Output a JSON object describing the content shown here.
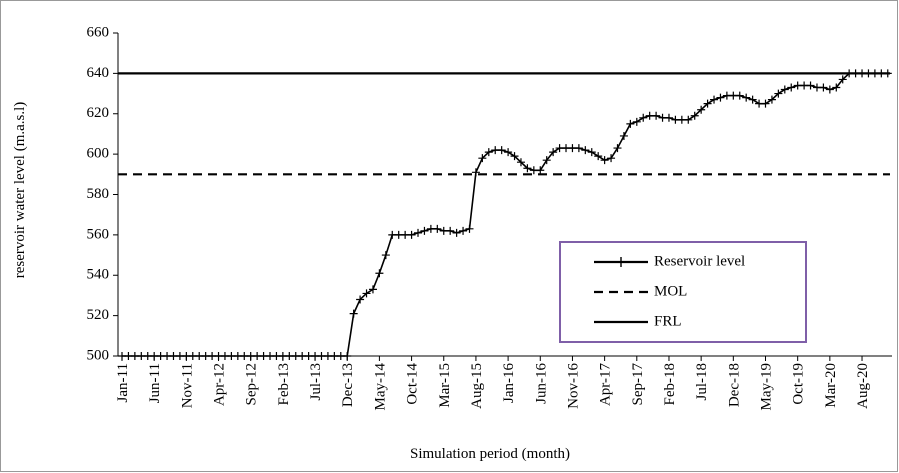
{
  "chart_data": {
    "type": "line",
    "ylabel": "reservoir water level (m.a.s.l)",
    "xlabel": "Simulation period (month)",
    "categories": [
      "Jan-11",
      null,
      null,
      null,
      null,
      "Jun-11",
      null,
      null,
      null,
      null,
      "Nov-11",
      null,
      null,
      null,
      null,
      "Apr-12",
      null,
      null,
      null,
      null,
      "Sep-12",
      null,
      null,
      null,
      null,
      "Feb-13",
      null,
      null,
      null,
      null,
      "Jul-13",
      null,
      null,
      null,
      null,
      "Dec-13",
      null,
      null,
      null,
      null,
      "May-14",
      null,
      null,
      null,
      null,
      "Oct-14",
      null,
      null,
      null,
      null,
      "Mar-15",
      null,
      null,
      null,
      null,
      "Aug-15",
      null,
      null,
      null,
      null,
      "Jan-16",
      null,
      null,
      null,
      null,
      "Jun-16",
      null,
      null,
      null,
      null,
      "Nov-16",
      null,
      null,
      null,
      null,
      "Apr-17",
      null,
      null,
      null,
      null,
      "Sep-17",
      null,
      null,
      null,
      null,
      "Feb-18",
      null,
      null,
      null,
      null,
      "Jul-18",
      null,
      null,
      null,
      null,
      "Dec-18",
      null,
      null,
      null,
      null,
      "May-19",
      null,
      null,
      null,
      null,
      "Oct-19",
      null,
      null,
      null,
      null,
      "Mar-20",
      null,
      null,
      null,
      null,
      "Aug-20",
      null,
      null,
      null,
      null
    ],
    "series": [
      {
        "name": "Reservoir level",
        "color": "#000000",
        "values": [
          500,
          500,
          500,
          500,
          500,
          500,
          500,
          500,
          500,
          500,
          500,
          500,
          500,
          500,
          500,
          500,
          500,
          500,
          500,
          500,
          500,
          500,
          500,
          500,
          500,
          500,
          500,
          500,
          500,
          500,
          500,
          500,
          500,
          500,
          500,
          500,
          521,
          528,
          531,
          533,
          541,
          550,
          560,
          560,
          560,
          560,
          561,
          562,
          563,
          563,
          562,
          562,
          561,
          562,
          563,
          591,
          598,
          601,
          602,
          602,
          601,
          599,
          596,
          593,
          592,
          592,
          597,
          601,
          603,
          603,
          603,
          603,
          602,
          601,
          599,
          597,
          598,
          603,
          609,
          615,
          616,
          618,
          619,
          619,
          618,
          618,
          617,
          617,
          617,
          619,
          622,
          625,
          627,
          628,
          629,
          629,
          629,
          628,
          627,
          625,
          625,
          627,
          630,
          632,
          633,
          634,
          634,
          634,
          633,
          633,
          632,
          633,
          637,
          640,
          640,
          640,
          640,
          640,
          640,
          640
        ]
      }
    ],
    "hlines": [
      {
        "name": "MOL",
        "value": 590,
        "color": "#000000",
        "style": "dashed"
      },
      {
        "name": "FRL",
        "value": 640,
        "color": "#000000",
        "style": "solid"
      }
    ],
    "ylim": [
      500,
      660
    ],
    "yticks": [
      500,
      520,
      540,
      560,
      580,
      600,
      620,
      640,
      660
    ],
    "legend": "lower right"
  }
}
